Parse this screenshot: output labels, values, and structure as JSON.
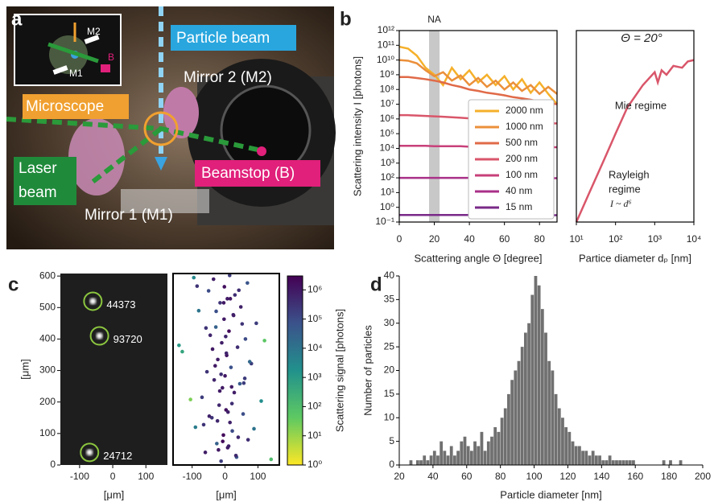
{
  "panel_labels": [
    "a",
    "b",
    "c",
    "d"
  ],
  "photo": {
    "particle_beam": "Particle beam",
    "mirror2": "Mirror 2 (M2)",
    "microscope": "Microscope",
    "laser_beam": [
      "Laser",
      "beam"
    ],
    "beamstop": "Beamstop (B)",
    "mirror1": "Mirror 1 (M1)",
    "inset": {
      "m2": "M2",
      "m1": "M1",
      "b": "B"
    }
  },
  "chart_data": [
    {
      "type": "line",
      "xlabel": "Scattering angle Θ [degree]",
      "ylabel": "Scattering intensity I [photons]",
      "x": [
        0,
        5,
        10,
        15,
        20,
        25,
        30,
        35,
        40,
        45,
        50,
        55,
        60,
        65,
        70,
        75,
        80,
        85,
        90
      ],
      "series": [
        {
          "name": "2000 nm",
          "color": "#f5b02a",
          "values": [
            80000000000.0,
            60000000000.0,
            20000000000.0,
            3000000000.0,
            1000000000.0,
            200000000.0,
            3000000000.0,
            500000000.0,
            2000000000.0,
            300000000.0,
            1000000000.0,
            200000000.0,
            800000000.0,
            100000000.0,
            500000000.0,
            60000000.0,
            300000000.0,
            50000000.0,
            10000000.0
          ]
        },
        {
          "name": "1000 nm",
          "color": "#eb8f3a",
          "values": [
            10000000000.0,
            9000000000.0,
            6000000000.0,
            2000000000.0,
            800000000.0,
            1500000000.0,
            400000000.0,
            900000000.0,
            200000000.0,
            600000000.0,
            150000000.0,
            400000000.0,
            100000000.0,
            300000000.0,
            80000000.0,
            200000000.0,
            50000000.0,
            150000000.0,
            50000000.0
          ]
        },
        {
          "name": "500 nm",
          "color": "#e06a48",
          "values": [
            700000000.0,
            700000000.0,
            600000000.0,
            500000000.0,
            400000000.0,
            300000000.0,
            200000000.0,
            150000000.0,
            100000000.0,
            80000000.0,
            60000000.0,
            50000000.0,
            40000000.0,
            30000000.0,
            25000000.0,
            20000000.0,
            15000000.0,
            12000000.0,
            10000000.0
          ]
        },
        {
          "name": "200 nm",
          "color": "#d9566a",
          "values": [
            1800000.0,
            1800000.0,
            1700000.0,
            1600000.0,
            1500000.0,
            1400000.0,
            1300000.0,
            1200000.0,
            1100000.0,
            1000000.0,
            900000.0,
            800000.0,
            700000.0,
            600000.0,
            600000.0,
            500000.0,
            500000.0,
            500000.0,
            500000.0
          ]
        },
        {
          "name": "100 nm",
          "color": "#c8407a",
          "values": [
            15000.0,
            15000.0,
            15000.0,
            15000.0,
            14000.0,
            14000.0,
            14000.0,
            14000.0,
            13000.0,
            13000.0,
            13000.0,
            13000.0,
            13000.0,
            12000.0,
            12000.0,
            12000.0,
            12000.0,
            12000.0,
            12000.0
          ]
        },
        {
          "name": "40 nm",
          "color": "#a93088",
          "values": [
            100,
            100,
            100,
            100,
            100,
            100,
            100,
            100,
            100,
            98,
            98,
            97,
            97,
            96,
            96,
            95,
            95,
            95,
            95
          ]
        },
        {
          "name": "15 nm",
          "color": "#7a2a88",
          "values": [
            0.3,
            0.3,
            0.3,
            0.3,
            0.3,
            0.3,
            0.3,
            0.3,
            0.3,
            0.3,
            0.3,
            0.3,
            0.3,
            0.3,
            0.3,
            0.29,
            0.29,
            0.29,
            0.29
          ]
        }
      ],
      "xlim": [
        0,
        90
      ],
      "xticks": [
        0,
        20,
        40,
        60,
        80
      ],
      "ylim": [
        0.1,
        1000000000000.0
      ],
      "ylog": true,
      "yticks": [
        {
          "value": 0.1,
          "label": "10⁻¹"
        },
        {
          "value": 1,
          "label": "10⁰"
        },
        {
          "value": 10,
          "label": "10¹"
        },
        {
          "value": 100,
          "label": "10²"
        },
        {
          "value": 1000,
          "label": "10³"
        },
        {
          "value": 10000.0,
          "label": "10⁴"
        },
        {
          "value": 100000.0,
          "label": "10⁵"
        },
        {
          "value": 1000000.0,
          "label": "10⁶"
        },
        {
          "value": 10000000.0,
          "label": "10⁷"
        },
        {
          "value": 100000000.0,
          "label": "10⁸"
        },
        {
          "value": 1000000000.0,
          "label": "10⁹"
        },
        {
          "value": 10000000000.0,
          "label": "10¹⁰"
        },
        {
          "value": 100000000000.0,
          "label": "10¹¹"
        },
        {
          "value": 1000000000000.0,
          "label": "10¹²"
        }
      ],
      "legend": "lower right",
      "shade": {
        "label": "NA",
        "range": [
          17,
          23
        ],
        "color": "#c8c8c8"
      }
    },
    {
      "type": "line",
      "title": "Θ = 20°",
      "xlabel": "Partice diameter dₚ [nm]",
      "x": [
        10,
        20,
        50,
        100,
        200,
        500,
        1000,
        1200,
        1500,
        2000,
        3000,
        5000,
        7000,
        10000
      ],
      "series": [
        {
          "color": "#d9566a",
          "values": [
            0.1,
            6.4,
            1500,
            100000.0,
            6000000.0,
            200000000.0,
            1500000000.0,
            300000000.0,
            2000000000.0,
            1000000000.0,
            4000000000.0,
            3000000000.0,
            8000000000.0,
            10000000000.0
          ]
        }
      ],
      "xlim": [
        10,
        10000
      ],
      "xlog": true,
      "xticks": [
        {
          "value": 10,
          "label": "10¹"
        },
        {
          "value": 100,
          "label": "10²"
        },
        {
          "value": 1000,
          "label": "10³"
        },
        {
          "value": 10000,
          "label": "10⁴"
        }
      ],
      "ylim": [
        0.1,
        1000000000000.0
      ],
      "ylog": true,
      "annotations": {
        "mie": "Mie regime",
        "rayleigh": [
          "Rayleigh",
          "regime"
        ],
        "scaling": "I ~ d⁶"
      }
    },
    {
      "type": "scatter",
      "xlabel": "[μm]",
      "ylabel": "[μm]",
      "x": [
        -60,
        -40,
        -70
      ],
      "y": [
        520,
        410,
        40
      ],
      "values": [
        44373,
        93720,
        24712
      ],
      "xlim": [
        -158,
        165
      ],
      "xticks": [
        -100,
        0,
        100
      ],
      "ylim": [
        0,
        608
      ],
      "yticks": [
        0,
        100,
        200,
        300,
        400,
        500,
        600
      ],
      "background": "#1e1e1e",
      "marker_color": "#8cc63f"
    },
    {
      "type": "scatter",
      "xlabel": "[μm]",
      "x": [
        -12,
        35,
        -60,
        8,
        -25,
        70,
        -5,
        22,
        -90,
        15,
        -40,
        55,
        3,
        -18,
        110,
        -70,
        28,
        -8,
        45,
        -33,
        0,
        -55,
        18,
        80,
        -22,
        5,
        -130,
        38,
        -10,
        62,
        -45,
        12,
        -28,
        95,
        -3,
        25,
        -80,
        48,
        -15,
        7,
        30,
        -50,
        -2,
        68,
        -35,
        14,
        140,
        -20,
        40,
        -65,
        9,
        -105,
        20,
        -12,
        75,
        -38,
        2,
        52,
        -27,
        16,
        -85,
        33,
        -7,
        88,
        -48,
        21,
        -16,
        60,
        -30,
        4,
        120,
        -58,
        26,
        -4,
        42,
        -95,
        11,
        -23,
        57,
        -140
      ],
      "y": [
        12,
        25,
        40,
        55,
        68,
        80,
        95,
        108,
        120,
        135,
        150,
        162,
        175,
        190,
        203,
        215,
        230,
        245,
        258,
        270,
        283,
        296,
        310,
        322,
        335,
        348,
        360,
        374,
        388,
        400,
        412,
        425,
        438,
        450,
        463,
        477,
        490,
        502,
        515,
        528,
        540,
        553,
        566,
        578,
        590,
        602,
        18,
        48,
        88,
        128,
        168,
        208,
        248,
        288,
        328,
        368,
        408,
        448,
        488,
        528,
        568,
        30,
        75,
        115,
        155,
        195,
        235,
        275,
        315,
        355,
        395,
        435,
        475,
        515,
        555,
        595,
        60,
        140,
        260,
        380
      ],
      "values": [
        200000.0,
        50000.0,
        800000.0,
        1000000.0,
        30000.0,
        400000.0,
        2000000.0,
        100000.0,
        6000.0,
        700000.0,
        300000.0,
        90000.0,
        1500000.0,
        500000.0,
        2000.0,
        200000.0,
        800000.0,
        1000000.0,
        40000.0,
        600000.0,
        1000000.0,
        300000.0,
        70000.0,
        200000.0,
        900000.0,
        1200000.0,
        500,
        400000.0,
        800000.0,
        100000.0,
        600000.0,
        2000000.0,
        30000.0,
        200000.0,
        1000000.0,
        500000.0,
        10000.0,
        700000.0,
        300000.0,
        900000.0,
        400000.0,
        100000.0,
        1500000.0,
        60000.0,
        800000.0,
        200000.0,
        100,
        1000000.0,
        500000.0,
        300000.0,
        700000.0,
        20,
        900000.0,
        400000.0,
        20000.0,
        1000000.0,
        600000.0,
        300000.0,
        80000.0,
        1200000.0,
        300000.0,
        500000.0,
        2000000.0,
        10000.0,
        700000.0,
        400000.0,
        900000.0,
        200000.0,
        1000000.0,
        600000.0,
        50,
        300000.0,
        800000.0,
        1000000.0,
        400000.0,
        3000.0,
        700000.0,
        500000.0,
        200000.0,
        1000.0
      ],
      "xlim": [
        -158,
        165
      ],
      "xticks": [
        -100,
        0,
        100
      ],
      "ylim": [
        0,
        608
      ],
      "colormap": [
        "#fde725",
        "#5ec962",
        "#21918c",
        "#3b528b",
        "#440154"
      ],
      "clim": [
        1,
        3000000.0
      ],
      "clog": true,
      "clabel": "Scattering signal [photons]",
      "cticks": [
        {
          "value": 1,
          "label": "10⁰"
        },
        {
          "value": 10,
          "label": "10¹"
        },
        {
          "value": 100,
          "label": "10²"
        },
        {
          "value": 1000,
          "label": "10³"
        },
        {
          "value": 10000.0,
          "label": "10⁴"
        },
        {
          "value": 100000.0,
          "label": "10⁵"
        },
        {
          "value": 1000000.0,
          "label": "10⁶"
        }
      ]
    },
    {
      "type": "histogram",
      "xlabel": "Particle diameter [nm]",
      "ylabel": "Number of particles",
      "color": "#707070",
      "bins": [
        26,
        28,
        30,
        32,
        34,
        36,
        38,
        40,
        42,
        44,
        46,
        48,
        50,
        52,
        54,
        56,
        58,
        60,
        62,
        64,
        66,
        68,
        70,
        72,
        74,
        76,
        78,
        80,
        82,
        84,
        86,
        88,
        90,
        92,
        94,
        96,
        98,
        100,
        102,
        104,
        106,
        108,
        110,
        112,
        114,
        116,
        118,
        120,
        122,
        124,
        126,
        128,
        130,
        132,
        134,
        136,
        138,
        140,
        142,
        144,
        146,
        148,
        150,
        152,
        154,
        156,
        158,
        160,
        162,
        164,
        166,
        168,
        170,
        172,
        174,
        176,
        178,
        180,
        182,
        184,
        186,
        188,
        190
      ],
      "values": [
        1,
        0,
        1,
        1,
        2,
        1,
        2,
        3,
        2,
        5,
        3,
        2,
        4,
        2,
        3,
        5,
        6,
        4,
        3,
        5,
        4,
        7,
        3,
        5,
        6,
        8,
        7,
        10,
        12,
        15,
        18,
        20,
        22,
        25,
        28,
        30,
        36,
        40,
        38,
        33,
        28,
        22,
        20,
        15,
        12,
        10,
        8,
        7,
        5,
        4,
        4,
        3,
        3,
        2,
        3,
        2,
        2,
        1,
        1,
        2,
        1,
        1,
        1,
        1,
        1,
        1,
        1,
        0,
        0,
        0,
        0,
        0,
        0,
        0,
        0,
        1,
        0,
        1,
        0,
        0,
        1,
        0
      ],
      "xlim": [
        20,
        200
      ],
      "xticks": [
        20,
        40,
        60,
        80,
        100,
        120,
        140,
        160,
        180,
        200
      ],
      "ylim": [
        0,
        40
      ],
      "yticks": [
        0,
        5,
        10,
        15,
        20,
        25,
        30,
        35,
        40
      ]
    }
  ]
}
